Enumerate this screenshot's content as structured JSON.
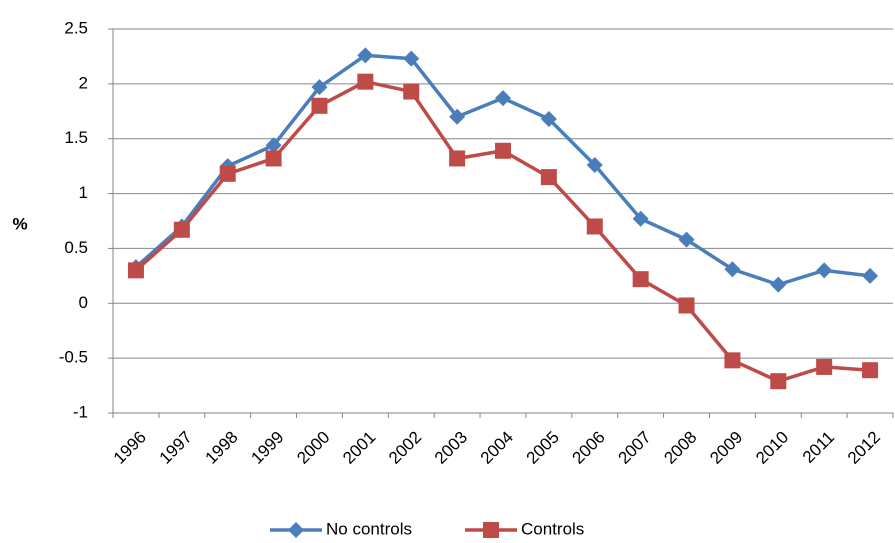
{
  "chart_data": {
    "type": "line",
    "y_label": "%",
    "categories": [
      "1996",
      "1997",
      "1998",
      "1999",
      "2000",
      "2001",
      "2002",
      "2003",
      "2004",
      "2005",
      "2006",
      "2007",
      "2008",
      "2009",
      "2010",
      "2011",
      "2012"
    ],
    "series": [
      {
        "name": "No controls",
        "color": "#4a7ebb",
        "marker": "diamond",
        "values": [
          0.33,
          0.7,
          1.25,
          1.44,
          1.97,
          2.26,
          2.23,
          1.7,
          1.87,
          1.68,
          1.26,
          0.77,
          0.58,
          0.31,
          0.17,
          0.3,
          0.25
        ]
      },
      {
        "name": "Controls",
        "color": "#be4b48",
        "marker": "square",
        "values": [
          0.3,
          0.67,
          1.18,
          1.32,
          1.8,
          2.02,
          1.93,
          1.32,
          1.39,
          1.15,
          0.7,
          0.22,
          -0.02,
          -0.52,
          -0.71,
          -0.58,
          -0.61
        ]
      }
    ],
    "ylim": [
      -1,
      2.5
    ],
    "yticks": [
      -1,
      -0.5,
      0,
      0.5,
      1,
      1.5,
      2,
      2.5
    ],
    "grid": true,
    "legend": "bottom"
  }
}
